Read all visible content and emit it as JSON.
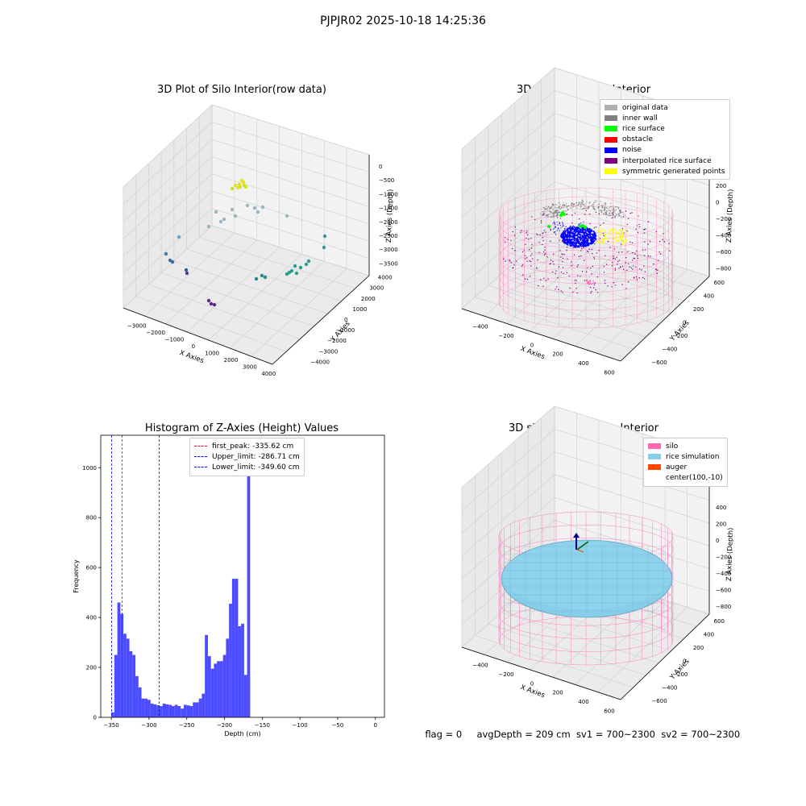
{
  "suptitle": "PJPJR02 2025-10-18 14:25:36",
  "status_line": {
    "flag": "flag = 0",
    "avg_depth": "avgDepth = 209 cm",
    "sv1": "sv1 = 700~2300",
    "sv2": "sv2 = 700~2300"
  },
  "colors": {
    "original": "#b0b0b0",
    "inner_wall": "#808080",
    "rice_surface": "#00ff00",
    "obstacle": "#ff0000",
    "noise": "#0000ff",
    "interpolated": "#800080",
    "symmetric": "#ffff00",
    "silo": "#ff69b4",
    "rice_sim": "#87ceeb",
    "auger": "#ff4500",
    "hist_bar": "#4b4bff"
  },
  "chart_data": [
    {
      "type": "scatter",
      "title": "3D Plot of Silo Interior(row data)",
      "xlabel": "X Axies",
      "ylabel": "Y Axies",
      "zlabel": "Z Axies (Depth)",
      "x_ticks": [
        "−3000",
        "−2000",
        "−1000",
        "0",
        "1000",
        "2000",
        "3000",
        "4000"
      ],
      "y_ticks": [
        "−4000",
        "−3000",
        "−2000",
        "−1000",
        "0",
        "1000",
        "2000",
        "3000",
        "4000"
      ],
      "z_ticks": [
        "−3500",
        "−3000",
        "−2500",
        "−2000",
        "−1500",
        "−1000",
        "−500",
        "0"
      ],
      "colormap": "viridis"
    },
    {
      "type": "scatter",
      "title": "3D classify of Silo Interior",
      "xlabel": "X Axies",
      "ylabel": "Y Axies",
      "zlabel": "Z Axies (Depth)",
      "x_ticks": [
        "−400",
        "−200",
        "0",
        "200",
        "400",
        "600"
      ],
      "y_ticks": [
        "−600",
        "−400",
        "−200",
        "0",
        "200",
        "400",
        "600"
      ],
      "z_ticks": [
        "−800",
        "−600",
        "−400",
        "−200",
        "0",
        "200"
      ],
      "legend": [
        {
          "label": "original data",
          "color": "#b0b0b0"
        },
        {
          "label": "inner wall",
          "color": "#808080"
        },
        {
          "label": "rice surface",
          "color": "#00ff00"
        },
        {
          "label": "obstacle",
          "color": "#ff0000"
        },
        {
          "label": "noise",
          "color": "#0000ff"
        },
        {
          "label": "interpolated rice surface",
          "color": "#800080"
        },
        {
          "label": "symmetric generated points",
          "color": "#ffff00"
        }
      ]
    },
    {
      "type": "bar",
      "title": "Histogram of Z-Axies (Height) Values",
      "xlabel": "Depth (cm)",
      "ylabel": "Frequency",
      "xlim": [
        -364,
        12
      ],
      "ylim": [
        0,
        1130
      ],
      "x_ticks": [
        -350,
        -300,
        -250,
        -200,
        -150,
        -100,
        -50,
        0
      ],
      "x_tick_labels": [
        "−350",
        "−300",
        "−250",
        "−200",
        "−150",
        "−100",
        "−50",
        "0"
      ],
      "y_ticks": [
        0,
        200,
        400,
        600,
        800,
        1000
      ],
      "bin_start": -350,
      "bin_width": 4.0,
      "values": [
        20,
        250,
        460,
        415,
        335,
        315,
        265,
        250,
        165,
        120,
        75,
        75,
        70,
        55,
        52,
        48,
        45,
        55,
        52,
        50,
        45,
        50,
        45,
        35,
        50,
        48,
        45,
        60,
        60,
        75,
        95,
        330,
        245,
        195,
        215,
        225,
        225,
        250,
        315,
        455,
        555,
        555,
        365,
        375,
        170,
        1075
      ],
      "vlines": [
        {
          "label": "first_peak: -335.62 cm",
          "x": -335.62,
          "color": "#ff0000"
        },
        {
          "label": "Upper_limit: -286.71 cm",
          "x": -286.71,
          "color": "#0000ff"
        },
        {
          "label": "Lower_limit: -349.60 cm",
          "x": -349.6,
          "color": "#0000ff"
        }
      ]
    },
    {
      "type": "scatter",
      "title": "3D simulation of Silo Interior",
      "xlabel": "X Axies",
      "ylabel": "Y Axies",
      "zlabel": "Z Axies (Depth)",
      "x_ticks": [
        "−400",
        "−200",
        "0",
        "200",
        "400",
        "600"
      ],
      "y_ticks": [
        "−600",
        "−400",
        "−200",
        "0",
        "200",
        "400",
        "600"
      ],
      "z_ticks": [
        "−800",
        "−600",
        "−400",
        "−200",
        "0",
        "200",
        "400"
      ],
      "legend": [
        {
          "label": "silo",
          "color": "#ff69b4"
        },
        {
          "label": "rice simulation",
          "color": "#87ceeb"
        },
        {
          "label": "auger",
          "color": "#ff4500"
        },
        {
          "label": "center(100,-10)",
          "color": ""
        }
      ]
    }
  ]
}
